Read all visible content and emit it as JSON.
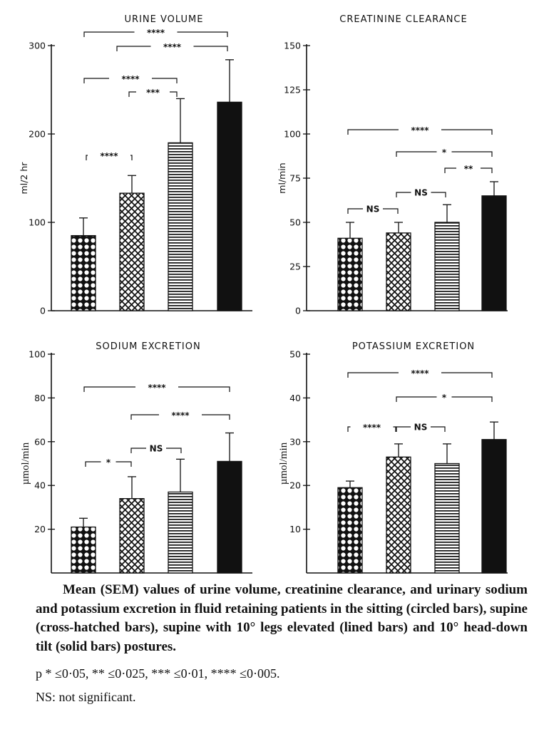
{
  "chart_data": [
    {
      "type": "bar",
      "title": "URINE VOLUME",
      "ylabel": "ml/2 hr",
      "ylim": [
        0,
        300
      ],
      "yticks": [
        0,
        100,
        200,
        300
      ],
      "ytick_labels": [
        "0",
        "100",
        "200",
        "300"
      ],
      "categories": [
        "Sitting",
        "Supine",
        "Supine, 10° legs elevated",
        "10° head-down tilt"
      ],
      "values": [
        85,
        133,
        190,
        236
      ],
      "sem": [
        20,
        20,
        50,
        48
      ],
      "comparisons": [
        {
          "from": 0,
          "to": 1,
          "label": "****"
        },
        {
          "from": 1,
          "to": 2,
          "label": "***"
        },
        {
          "from": 0,
          "to": 2,
          "label": "****"
        },
        {
          "from": 1,
          "to": 3,
          "label": "****"
        },
        {
          "from": 0,
          "to": 3,
          "label": "****"
        }
      ]
    },
    {
      "type": "bar",
      "title": "CREATININE CLEARANCE",
      "ylabel": "ml/min",
      "ylim": [
        0,
        150
      ],
      "yticks": [
        0,
        25,
        50,
        75,
        100,
        125,
        150
      ],
      "ytick_labels": [
        "0",
        "25",
        "50",
        "75",
        "100",
        "125",
        "150"
      ],
      "categories": [
        "Sitting",
        "Supine",
        "Supine, 10° legs elevated",
        "10° head-down tilt"
      ],
      "values": [
        41,
        44,
        50,
        65
      ],
      "sem": [
        9,
        6,
        10,
        8
      ],
      "comparisons": [
        {
          "from": 0,
          "to": 1,
          "label": "NS"
        },
        {
          "from": 1,
          "to": 2,
          "label": "NS"
        },
        {
          "from": 2,
          "to": 3,
          "label": "**"
        },
        {
          "from": 1,
          "to": 3,
          "label": "*"
        },
        {
          "from": 0,
          "to": 3,
          "label": "****"
        }
      ]
    },
    {
      "type": "bar",
      "title": "SODIUM EXCRETION",
      "ylabel": "µmol/min",
      "ylim": [
        0,
        100
      ],
      "yticks": [
        20,
        40,
        60,
        80,
        100
      ],
      "ytick_labels": [
        "20",
        "40",
        "60",
        "80",
        "100"
      ],
      "categories": [
        "Sitting",
        "Supine",
        "Supine, 10° legs elevated",
        "10° head-down tilt"
      ],
      "values": [
        21,
        34,
        37,
        51
      ],
      "sem": [
        4,
        10,
        15,
        13
      ],
      "comparisons": [
        {
          "from": 0,
          "to": 1,
          "label": "*"
        },
        {
          "from": 1,
          "to": 2,
          "label": "NS"
        },
        {
          "from": 1,
          "to": 3,
          "label": "****"
        },
        {
          "from": 0,
          "to": 3,
          "label": "****"
        }
      ]
    },
    {
      "type": "bar",
      "title": "POTASSIUM EXCRETION",
      "ylabel": "µmol/min",
      "ylim": [
        0,
        50
      ],
      "yticks": [
        10,
        20,
        30,
        40,
        50
      ],
      "ytick_labels": [
        "10",
        "20",
        "30",
        "40",
        "50"
      ],
      "categories": [
        "Sitting",
        "Supine",
        "Supine, 10° legs elevated",
        "10° head-down tilt"
      ],
      "values": [
        19.5,
        26.5,
        25,
        30.5
      ],
      "sem": [
        1.5,
        3,
        4.5,
        4
      ],
      "comparisons": [
        {
          "from": 0,
          "to": 1,
          "label": "****"
        },
        {
          "from": 1,
          "to": 2,
          "label": "NS"
        },
        {
          "from": 1,
          "to": 3,
          "label": "*"
        },
        {
          "from": 0,
          "to": 3,
          "label": "****"
        }
      ]
    }
  ],
  "caption": "Mean (SEM) values of urine volume, creatinine clearance, and urinary sodium and potassium excretion in fluid retaining patients in the sitting (circled bars), supine (cross-hatched bars), supine with 10° legs elevated (lined bars) and 10° head-down tilt (solid bars) postures.",
  "significance_legend": "p * ≤0·05, ** ≤0·025, *** ≤0·01, **** ≤0·005.",
  "ns_note": "NS: not significant."
}
